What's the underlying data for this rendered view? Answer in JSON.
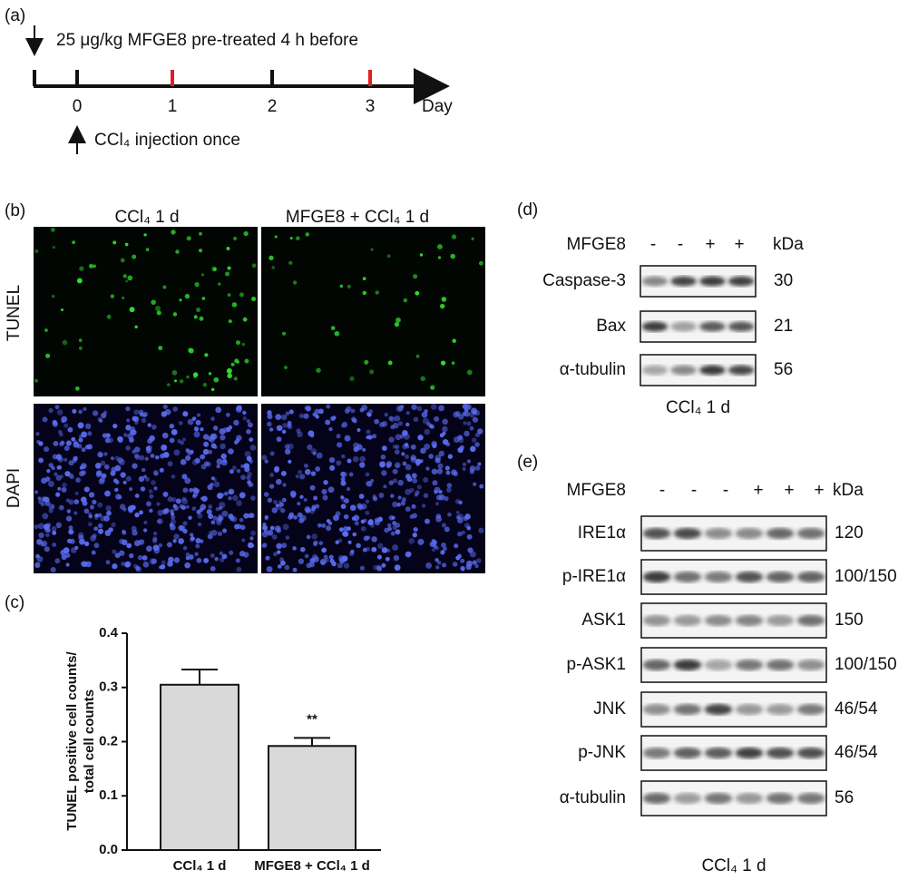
{
  "panel_a": {
    "letter": "(a)",
    "pretreat": "25 μg/kg MFGE8 pre-treated 4 h before",
    "days": [
      "0",
      "1",
      "2",
      "3"
    ],
    "unit": "Day",
    "injection": "CCl₄ injection once"
  },
  "panel_b": {
    "letter": "(b)",
    "columns": [
      "CCl₄ 1 d",
      "MFGE8 + CCl₄ 1 d"
    ],
    "rows": [
      "TUNEL",
      "DAPI"
    ]
  },
  "panel_c": {
    "letter": "(c)"
  },
  "chart_data": {
    "type": "bar",
    "ylabel": [
      "TUNEL positive cell counts/",
      "total cell counts"
    ],
    "categories": [
      "CCl₄ 1 d",
      "MFGE8 + CCl₄ 1 d"
    ],
    "values": [
      0.305,
      0.192
    ],
    "errors": [
      0.028,
      0.015
    ],
    "annotations": [
      null,
      "**"
    ],
    "color": "#d9d9d9",
    "ylim": [
      0,
      0.4
    ],
    "yticks": [
      {
        "value": 0,
        "label": "0.0"
      },
      0.1,
      0.2,
      0.3,
      0.4
    ]
  },
  "panel_d": {
    "letter": "(d)",
    "treatment": "MFGE8",
    "signs": [
      "-",
      "-",
      "+",
      "+"
    ],
    "unit": "kDa",
    "rows": [
      {
        "protein": "Caspase-3",
        "kda": "30"
      },
      {
        "protein": "Bax",
        "kda": "21"
      },
      {
        "protein": "α-tubulin",
        "kda": "56"
      }
    ],
    "footer": "CCl₄ 1 d"
  },
  "panel_e": {
    "letter": "(e)",
    "treatment": "MFGE8",
    "signs": [
      "-",
      "-",
      "-",
      "+",
      "+",
      "+"
    ],
    "unit": "kDa",
    "rows": [
      {
        "protein": "IRE1α",
        "kda": "120"
      },
      {
        "protein": "p-IRE1α",
        "kda": "100/150"
      },
      {
        "protein": "ASK1",
        "kda": "150"
      },
      {
        "protein": "p-ASK1",
        "kda": "100/150"
      },
      {
        "protein": "JNK",
        "kda": "46/54"
      },
      {
        "protein": "p-JNK",
        "kda": "46/54"
      },
      {
        "protein": "α-tubulin",
        "kda": "56"
      }
    ],
    "footer": "CCl₄ 1 d"
  }
}
